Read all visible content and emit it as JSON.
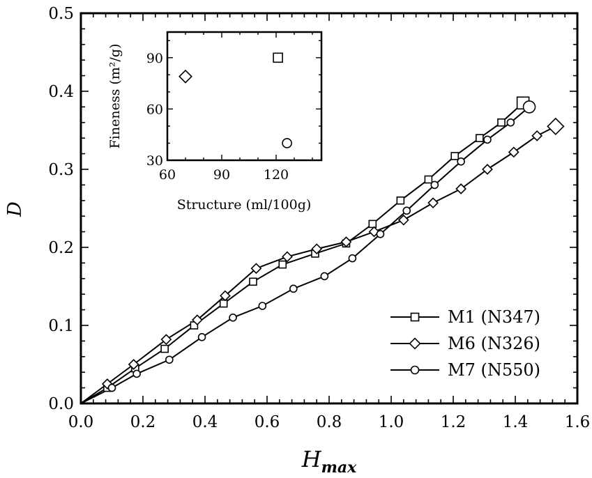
{
  "chart_data": {
    "type": "line",
    "xlabel": "H",
    "xlabel_sub": "max",
    "ylabel": "D",
    "xlim": [
      0.0,
      1.6
    ],
    "ylim": [
      0.0,
      0.5
    ],
    "xticks": [
      "0.0",
      "0.2",
      "0.4",
      "0.6",
      "0.8",
      "1.0",
      "1.2",
      "1.4",
      "1.6"
    ],
    "yticks": [
      "0.0",
      "0.1",
      "0.2",
      "0.3",
      "0.4",
      "0.5"
    ],
    "grid": false,
    "legend": "bottom-right",
    "series": [
      {
        "name": "M1 (N347)",
        "marker": "square",
        "x": [
          0.0,
          0.085,
          0.175,
          0.27,
          0.365,
          0.46,
          0.555,
          0.65,
          0.755,
          0.855,
          0.94,
          1.03,
          1.12,
          1.205,
          1.285,
          1.355,
          1.425
        ],
        "y": [
          0.0,
          0.02,
          0.045,
          0.07,
          0.1,
          0.128,
          0.156,
          0.178,
          0.192,
          0.205,
          0.23,
          0.26,
          0.287,
          0.317,
          0.34,
          0.36,
          0.385
        ]
      },
      {
        "name": "M6 (N326)",
        "marker": "diamond",
        "x": [
          0.0,
          0.085,
          0.17,
          0.275,
          0.375,
          0.465,
          0.565,
          0.665,
          0.76,
          0.855,
          0.945,
          1.04,
          1.135,
          1.225,
          1.31,
          1.395,
          1.47,
          1.53
        ],
        "y": [
          0.0,
          0.025,
          0.05,
          0.082,
          0.107,
          0.138,
          0.173,
          0.188,
          0.198,
          0.207,
          0.22,
          0.235,
          0.257,
          0.275,
          0.3,
          0.322,
          0.343,
          0.355
        ]
      },
      {
        "name": "M7 (N550)",
        "marker": "circle",
        "x": [
          0.0,
          0.1,
          0.18,
          0.285,
          0.39,
          0.49,
          0.585,
          0.685,
          0.785,
          0.875,
          0.965,
          1.05,
          1.14,
          1.225,
          1.31,
          1.385,
          1.445
        ],
        "y": [
          0.0,
          0.02,
          0.038,
          0.056,
          0.085,
          0.11,
          0.125,
          0.147,
          0.163,
          0.186,
          0.217,
          0.247,
          0.28,
          0.31,
          0.338,
          0.36,
          0.38
        ]
      }
    ],
    "inset": {
      "type": "scatter",
      "xlabel": "Structure (ml/100g)",
      "ylabel": "Fineness (m²/g)",
      "xlim": [
        60,
        145
      ],
      "ylim": [
        30,
        105
      ],
      "xticks": [
        "60",
        "90",
        "120"
      ],
      "yticks": [
        "30",
        "60",
        "90"
      ],
      "points": [
        {
          "marker": "square",
          "x": 121,
          "y": 90
        },
        {
          "marker": "diamond",
          "x": 70,
          "y": 79
        },
        {
          "marker": "circle",
          "x": 126,
          "y": 40
        }
      ]
    }
  }
}
